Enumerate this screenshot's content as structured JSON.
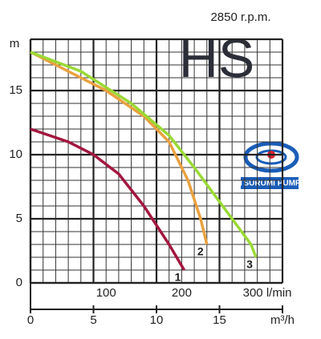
{
  "chart_data": {
    "type": "line",
    "annotations": {
      "speed": "2850 r.p.m.",
      "model": "HS",
      "brand": "TSURUMI PUMP"
    },
    "ylabel": "m",
    "xlim": [
      0,
      20
    ],
    "xticks": [
      0,
      5,
      10,
      15,
      {
        "value": 20,
        "label": "m³/h"
      }
    ],
    "x2lim": [
      0,
      333.3
    ],
    "x2ticks": [
      100,
      200,
      {
        "value": 300,
        "label": "300 l/min"
      }
    ],
    "ylim": [
      0,
      19
    ],
    "yticks": [
      0,
      5,
      10,
      15
    ],
    "grid": true,
    "series": [
      {
        "name": "1",
        "color": "#a3173f",
        "x": [
          0,
          3,
          5,
          7,
          9,
          11,
          12.2
        ],
        "values": [
          12,
          11,
          10,
          8.5,
          6,
          3,
          1
        ]
      },
      {
        "name": "2",
        "color": "#e9a13f",
        "x": [
          0,
          3,
          6,
          9,
          11,
          12.5,
          13.5,
          14
        ],
        "values": [
          18,
          16.5,
          15,
          13,
          11,
          8,
          5,
          3
        ]
      },
      {
        "name": "3",
        "color": "#9ad935",
        "x": [
          0,
          4,
          8,
          11,
          13,
          16,
          17.5,
          17.9
        ],
        "values": [
          18,
          16.5,
          14,
          11.5,
          9,
          5,
          3,
          2
        ]
      }
    ]
  }
}
